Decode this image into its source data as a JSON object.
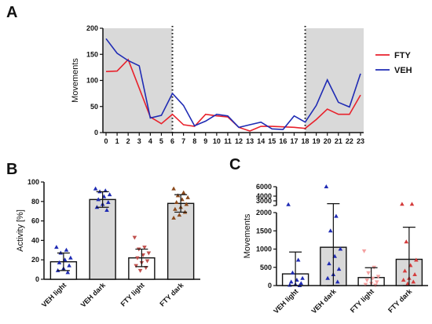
{
  "colors": {
    "fty": "#e8212b",
    "veh": "#1f2bb4",
    "shade": "#d9d9d9",
    "bar_fill": "#d9d9d9",
    "bar_fill_light": "#ffffff",
    "axis": "#111111",
    "veh_marker": "#1f2bb4",
    "fty_light_marker": "#c0504d",
    "fty_dark_marker": "#8b4a1c",
    "fty_c_light_marker": "#f4a0a0",
    "fty_c_dark_marker": "#d43c3c"
  },
  "chart_data": [
    {
      "panel": "A",
      "type": "line",
      "title": "",
      "xlabel": "",
      "ylabel": "Movements",
      "ylim": [
        0,
        200
      ],
      "yticks": [
        0,
        50,
        100,
        150,
        200
      ],
      "x": [
        0,
        1,
        2,
        3,
        4,
        5,
        6,
        7,
        8,
        9,
        10,
        11,
        12,
        13,
        14,
        15,
        16,
        17,
        18,
        19,
        20,
        21,
        22,
        23
      ],
      "shaded_ranges": [
        [
          0,
          6
        ],
        [
          18,
          23
        ]
      ],
      "dotted_lines": [
        6,
        18
      ],
      "legend_position": "right",
      "series": [
        {
          "name": "FTY",
          "color": "#e8212b",
          "values": [
            117,
            118,
            140,
            85,
            30,
            17,
            35,
            15,
            12,
            35,
            32,
            30,
            10,
            3,
            12,
            12,
            11,
            10,
            8,
            25,
            45,
            35,
            35,
            72
          ]
        },
        {
          "name": "VEH",
          "color": "#1f2bb4",
          "values": [
            180,
            152,
            138,
            128,
            28,
            33,
            75,
            52,
            13,
            22,
            35,
            32,
            10,
            15,
            20,
            7,
            6,
            32,
            20,
            52,
            101,
            58,
            49,
            113
          ]
        }
      ]
    },
    {
      "panel": "B",
      "type": "bar",
      "ylabel": "Activity [%]",
      "ylim": [
        0,
        100
      ],
      "yticks": [
        0,
        20,
        40,
        60,
        80,
        100
      ],
      "categories": [
        "VEH light",
        "VEH dark",
        "FTY light",
        "FTY dark"
      ],
      "values": [
        18,
        82,
        22,
        78
      ],
      "errors": [
        9,
        8,
        9,
        9
      ],
      "bar_shade": [
        false,
        true,
        false,
        true
      ],
      "points": [
        [
          33,
          30,
          27,
          22,
          20,
          17,
          14,
          11,
          9,
          7
        ],
        [
          93,
          91,
          90,
          87,
          85,
          82,
          79,
          77,
          74,
          71
        ],
        [
          43,
          33,
          31,
          27,
          25,
          22,
          19,
          17,
          14,
          12,
          9
        ],
        [
          93,
          89,
          86,
          84,
          82,
          79,
          77,
          74,
          72,
          69,
          66,
          63
        ]
      ]
    },
    {
      "panel": "C",
      "type": "bar",
      "ylabel": "Movements",
      "y_axis_break": true,
      "lower_ylim": [
        0,
        2000
      ],
      "lower_yticks": [
        0,
        500,
        1000,
        1500,
        2000
      ],
      "upper_ylim": [
        2000,
        6000
      ],
      "upper_yticks": [
        2000,
        3000,
        4000,
        6000
      ],
      "categories": [
        "VEH light",
        "VEH dark",
        "FTY light",
        "FTY dark"
      ],
      "values": [
        320,
        1050,
        220,
        720
      ],
      "errors": [
        600,
        1350,
        270,
        880
      ],
      "bar_shade": [
        false,
        true,
        false,
        true
      ],
      "points": [
        [
          2200,
          700,
          350,
          200,
          150,
          100,
          60,
          30,
          10,
          0
        ],
        [
          6000,
          1900,
          1500,
          1000,
          800,
          600,
          450,
          300,
          200,
          100
        ],
        [
          950,
          500,
          350,
          250,
          200,
          150,
          100,
          60,
          30,
          10
        ],
        [
          2300,
          2300,
          1200,
          700,
          550,
          400,
          300,
          200,
          150,
          100,
          50
        ]
      ]
    }
  ]
}
